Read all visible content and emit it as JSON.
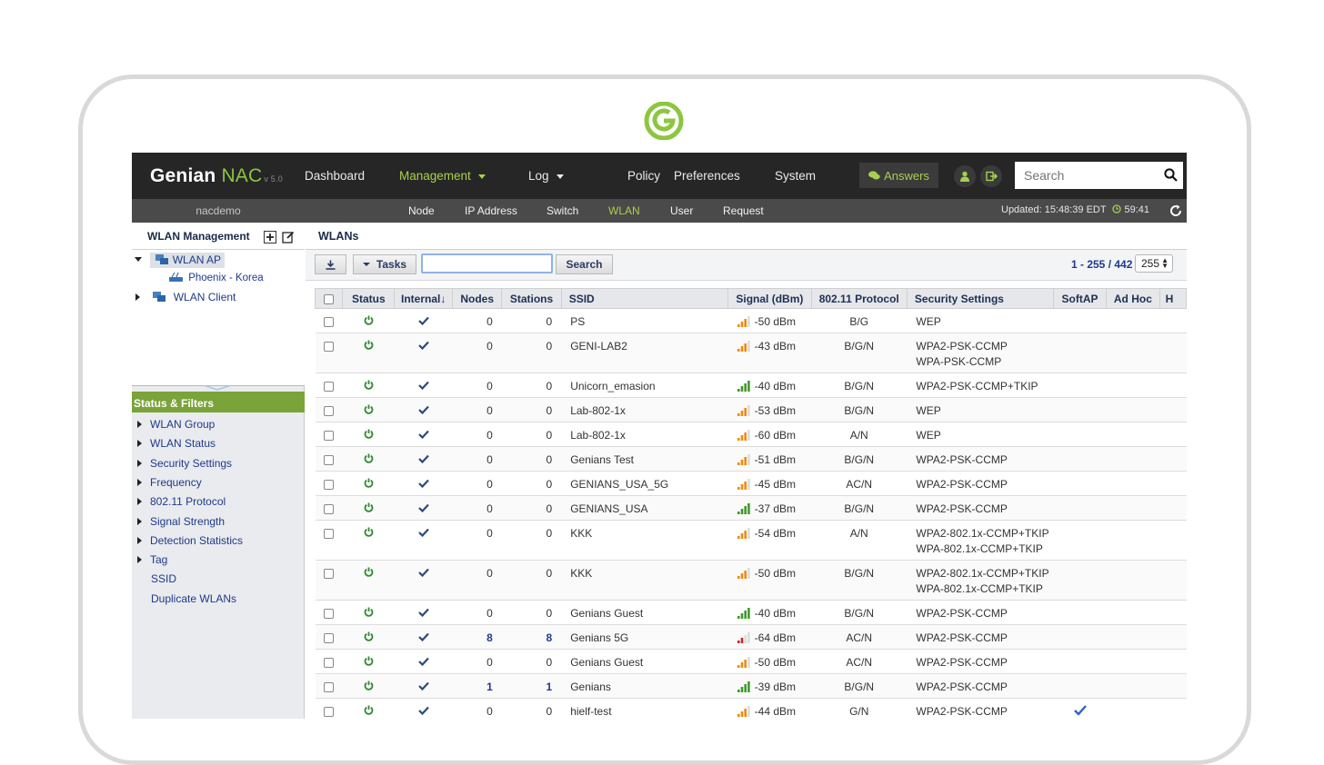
{
  "app": {
    "logo_main": "Genian",
    "logo_product": "NAC",
    "logo_version": "v 5.0",
    "accent": "#8dc63f"
  },
  "nav": {
    "items": [
      {
        "label": "Dashboard",
        "dropdown": false,
        "active": false
      },
      {
        "label": "Management",
        "dropdown": true,
        "active": true
      },
      {
        "label": "Log",
        "dropdown": true,
        "active": false
      },
      {
        "label": "Policy",
        "dropdown": false,
        "active": false
      },
      {
        "label": "Preferences",
        "dropdown": false,
        "active": false
      },
      {
        "label": "System",
        "dropdown": false,
        "active": false
      }
    ],
    "answers_label": "Answers",
    "search_placeholder": "Search"
  },
  "subnav": {
    "username": "nacdemo",
    "items": [
      "Node",
      "IP Address",
      "Switch",
      "WLAN",
      "User",
      "Request"
    ],
    "active": "WLAN",
    "updated_label": "Updated: 15:48:39 EDT",
    "timer": "59:41"
  },
  "left": {
    "title": "WLAN Management",
    "tree": [
      {
        "label": "WLAN AP",
        "expanded": true,
        "selected": true
      },
      {
        "label": "Phoenix - Korea",
        "child": true
      },
      {
        "label": "WLAN Client",
        "expanded": false
      }
    ],
    "filters_title": "Status & Filters",
    "filters": [
      {
        "label": "WLAN Group",
        "arrow": true
      },
      {
        "label": "WLAN Status",
        "arrow": true
      },
      {
        "label": "Security Settings",
        "arrow": true
      },
      {
        "label": "Frequency",
        "arrow": true
      },
      {
        "label": "802.11 Protocol",
        "arrow": true
      },
      {
        "label": "Signal Strength",
        "arrow": true
      },
      {
        "label": "Detection Statistics",
        "arrow": true
      },
      {
        "label": "Tag",
        "arrow": true
      },
      {
        "label": "SSID",
        "arrow": false
      },
      {
        "label": "Duplicate WLANs",
        "arrow": false
      }
    ]
  },
  "main": {
    "title": "WLANs",
    "tasks_label": "Tasks",
    "search_label": "Search",
    "pager": "1 - 255 / 442",
    "page_size": "255",
    "columns": [
      "Status",
      "Internal↓",
      "Nodes",
      "Stations",
      "SSID",
      "Signal (dBm)",
      "802.11 Protocol",
      "Security Settings",
      "SoftAP",
      "Ad Hoc",
      "H"
    ],
    "rows": [
      {
        "nodes": "0",
        "stations": "0",
        "ssid": "PS",
        "signal": "-50 dBm",
        "sigcolor": "#f08a0c",
        "bars": 3,
        "protocol": "B/G",
        "security": [
          "WEP"
        ],
        "softap": false
      },
      {
        "nodes": "0",
        "stations": "0",
        "ssid": "GENI-LAB2",
        "signal": "-43 dBm",
        "sigcolor": "#f08a0c",
        "bars": 3,
        "protocol": "B/G/N",
        "security": [
          "WPA2-PSK-CCMP",
          "WPA-PSK-CCMP"
        ],
        "softap": false
      },
      {
        "nodes": "0",
        "stations": "0",
        "ssid": "Unicorn_emasion",
        "signal": "-40 dBm",
        "sigcolor": "#3f9a2b",
        "bars": 4,
        "protocol": "B/G/N",
        "security": [
          "WPA2-PSK-CCMP+TKIP"
        ],
        "softap": false
      },
      {
        "nodes": "0",
        "stations": "0",
        "ssid": "Lab-802-1x",
        "signal": "-53 dBm",
        "sigcolor": "#f08a0c",
        "bars": 3,
        "protocol": "B/G/N",
        "security": [
          "WEP"
        ],
        "softap": false
      },
      {
        "nodes": "0",
        "stations": "0",
        "ssid": "Lab-802-1x",
        "signal": "-60 dBm",
        "sigcolor": "#f08a0c",
        "bars": 3,
        "protocol": "A/N",
        "security": [
          "WEP"
        ],
        "softap": false
      },
      {
        "nodes": "0",
        "stations": "0",
        "ssid": "Genians Test",
        "signal": "-51 dBm",
        "sigcolor": "#f08a0c",
        "bars": 3,
        "protocol": "B/G/N",
        "security": [
          "WPA2-PSK-CCMP"
        ],
        "softap": false
      },
      {
        "nodes": "0",
        "stations": "0",
        "ssid": "GENIANS_USA_5G",
        "signal": "-45 dBm",
        "sigcolor": "#f08a0c",
        "bars": 3,
        "protocol": "AC/N",
        "security": [
          "WPA2-PSK-CCMP"
        ],
        "softap": false
      },
      {
        "nodes": "0",
        "stations": "0",
        "ssid": "GENIANS_USA",
        "signal": "-37 dBm",
        "sigcolor": "#3f9a2b",
        "bars": 4,
        "protocol": "B/G/N",
        "security": [
          "WPA2-PSK-CCMP"
        ],
        "softap": false
      },
      {
        "nodes": "0",
        "stations": "0",
        "ssid": "KKK",
        "signal": "-54 dBm",
        "sigcolor": "#f08a0c",
        "bars": 3,
        "protocol": "A/N",
        "security": [
          "WPA2-802.1x-CCMP+TKIP",
          "WPA-802.1x-CCMP+TKIP"
        ],
        "softap": false
      },
      {
        "nodes": "0",
        "stations": "0",
        "ssid": "KKK",
        "signal": "-50 dBm",
        "sigcolor": "#f08a0c",
        "bars": 3,
        "protocol": "B/G/N",
        "security": [
          "WPA2-802.1x-CCMP+TKIP",
          "WPA-802.1x-CCMP+TKIP"
        ],
        "softap": false
      },
      {
        "nodes": "0",
        "stations": "0",
        "ssid": "Genians Guest",
        "signal": "-40 dBm",
        "sigcolor": "#3f9a2b",
        "bars": 4,
        "protocol": "B/G/N",
        "security": [
          "WPA2-PSK-CCMP"
        ],
        "softap": false
      },
      {
        "nodes": "8",
        "stations": "8",
        "ssid": "Genians 5G",
        "signal": "-64 dBm",
        "sigcolor": "#c62828",
        "bars": 2,
        "protocol": "AC/N",
        "security": [
          "WPA2-PSK-CCMP"
        ],
        "softap": false
      },
      {
        "nodes": "0",
        "stations": "0",
        "ssid": "Genians Guest",
        "signal": "-50 dBm",
        "sigcolor": "#f08a0c",
        "bars": 3,
        "protocol": "AC/N",
        "security": [
          "WPA2-PSK-CCMP"
        ],
        "softap": false
      },
      {
        "nodes": "1",
        "stations": "1",
        "ssid": "Genians",
        "signal": "-39 dBm",
        "sigcolor": "#3f9a2b",
        "bars": 4,
        "protocol": "B/G/N",
        "security": [
          "WPA2-PSK-CCMP"
        ],
        "softap": false
      },
      {
        "nodes": "0",
        "stations": "0",
        "ssid": "hielf-test",
        "signal": "-44 dBm",
        "sigcolor": "#f08a0c",
        "bars": 3,
        "protocol": "G/N",
        "security": [
          "WPA2-PSK-CCMP"
        ],
        "softap": true
      }
    ]
  }
}
